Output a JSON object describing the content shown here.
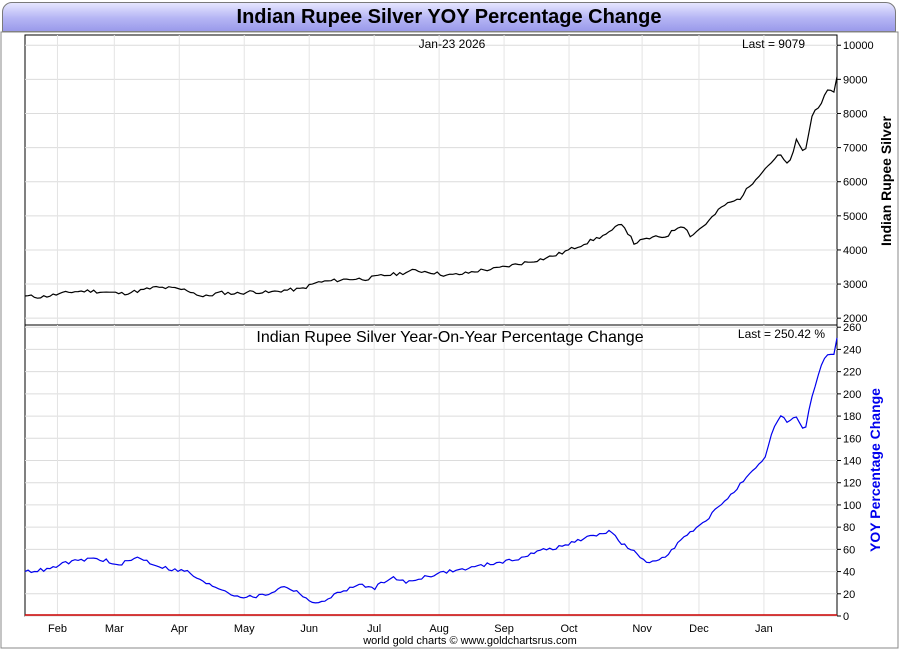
{
  "title": "Indian Rupee Silver YOY Percentage Change",
  "footer": "world gold charts © www.goldchartsrus.com",
  "chart_data": [
    {
      "type": "line",
      "name": "price",
      "header_date": "Jan-23  2026",
      "last_label": "Last = 9079",
      "ylabel": "Indian Rupee Silver",
      "ylim": [
        1800,
        10300
      ],
      "yticks": [
        2000,
        3000,
        4000,
        5000,
        6000,
        7000,
        8000,
        9000,
        10000
      ],
      "line_color": "#000000",
      "anchors": [
        [
          0,
          2650
        ],
        [
          0.02,
          2620
        ],
        [
          0.04,
          2700
        ],
        [
          0.06,
          2780
        ],
        [
          0.08,
          2800
        ],
        [
          0.1,
          2760
        ],
        [
          0.12,
          2720
        ],
        [
          0.14,
          2800
        ],
        [
          0.16,
          2900
        ],
        [
          0.18,
          2880
        ],
        [
          0.2,
          2820
        ],
        [
          0.22,
          2620
        ],
        [
          0.24,
          2750
        ],
        [
          0.26,
          2720
        ],
        [
          0.28,
          2780
        ],
        [
          0.3,
          2750
        ],
        [
          0.32,
          2820
        ],
        [
          0.34,
          2850
        ],
        [
          0.36,
          3050
        ],
        [
          0.38,
          3100
        ],
        [
          0.4,
          3150
        ],
        [
          0.42,
          3150
        ],
        [
          0.44,
          3250
        ],
        [
          0.46,
          3300
        ],
        [
          0.48,
          3400
        ],
        [
          0.5,
          3350
        ],
        [
          0.52,
          3250
        ],
        [
          0.54,
          3300
        ],
        [
          0.56,
          3400
        ],
        [
          0.58,
          3450
        ],
        [
          0.6,
          3550
        ],
        [
          0.62,
          3650
        ],
        [
          0.64,
          3750
        ],
        [
          0.66,
          3900
        ],
        [
          0.68,
          4100
        ],
        [
          0.7,
          4300
        ],
        [
          0.72,
          4500
        ],
        [
          0.735,
          4800
        ],
        [
          0.75,
          4200
        ],
        [
          0.77,
          4350
        ],
        [
          0.79,
          4400
        ],
        [
          0.8,
          4600
        ],
        [
          0.81,
          4750
        ],
        [
          0.82,
          4400
        ],
        [
          0.84,
          4800
        ],
        [
          0.86,
          5300
        ],
        [
          0.88,
          5500
        ],
        [
          0.9,
          6100
        ],
        [
          0.92,
          6600
        ],
        [
          0.93,
          6800
        ],
        [
          0.94,
          6450
        ],
        [
          0.95,
          7200
        ],
        [
          0.96,
          6800
        ],
        [
          0.97,
          8000
        ],
        [
          0.98,
          8300
        ],
        [
          0.99,
          8700
        ],
        [
          0.995,
          8550
        ],
        [
          1.0,
          9079
        ]
      ],
      "last_value": 9079
    },
    {
      "type": "line",
      "name": "yoy",
      "title": "Indian Rupee Silver Year-On-Year Percentage Change",
      "last_label": "Last = 250.42 %",
      "ylabel": "YOY Percentage Change",
      "ylim": [
        0,
        262
      ],
      "yticks": [
        0,
        20,
        40,
        60,
        80,
        100,
        120,
        140,
        160,
        180,
        200,
        220,
        240,
        260
      ],
      "line_color": "#0000ee",
      "baseline_color": "#cc0000",
      "anchors": [
        [
          0,
          40
        ],
        [
          0.03,
          42
        ],
        [
          0.05,
          48
        ],
        [
          0.07,
          50
        ],
        [
          0.08,
          52
        ],
        [
          0.1,
          50
        ],
        [
          0.11,
          45
        ],
        [
          0.13,
          50
        ],
        [
          0.14,
          53
        ],
        [
          0.16,
          46
        ],
        [
          0.18,
          42
        ],
        [
          0.2,
          40
        ],
        [
          0.22,
          30
        ],
        [
          0.24,
          25
        ],
        [
          0.26,
          18
        ],
        [
          0.28,
          17
        ],
        [
          0.3,
          20
        ],
        [
          0.32,
          27
        ],
        [
          0.34,
          20
        ],
        [
          0.35,
          14
        ],
        [
          0.36,
          10
        ],
        [
          0.37,
          15
        ],
        [
          0.39,
          22
        ],
        [
          0.41,
          28
        ],
        [
          0.43,
          25
        ],
        [
          0.45,
          35
        ],
        [
          0.47,
          30
        ],
        [
          0.49,
          35
        ],
        [
          0.52,
          40
        ],
        [
          0.54,
          42
        ],
        [
          0.56,
          45
        ],
        [
          0.58,
          48
        ],
        [
          0.6,
          50
        ],
        [
          0.62,
          55
        ],
        [
          0.64,
          60
        ],
        [
          0.66,
          62
        ],
        [
          0.68,
          68
        ],
        [
          0.7,
          72
        ],
        [
          0.72,
          77
        ],
        [
          0.735,
          65
        ],
        [
          0.75,
          58
        ],
        [
          0.76,
          50
        ],
        [
          0.77,
          48
        ],
        [
          0.79,
          55
        ],
        [
          0.81,
          70
        ],
        [
          0.83,
          80
        ],
        [
          0.85,
          95
        ],
        [
          0.87,
          110
        ],
        [
          0.89,
          125
        ],
        [
          0.91,
          140
        ],
        [
          0.92,
          165
        ],
        [
          0.93,
          180
        ],
        [
          0.94,
          175
        ],
        [
          0.95,
          180
        ],
        [
          0.96,
          165
        ],
        [
          0.97,
          200
        ],
        [
          0.98,
          225
        ],
        [
          0.99,
          238
        ],
        [
          0.995,
          230
        ],
        [
          1.0,
          250.42
        ]
      ],
      "last_value": 250.42
    }
  ],
  "x_axis": {
    "months": [
      "Feb",
      "Mar",
      "Apr",
      "May",
      "Jun",
      "Jul",
      "Aug",
      "Sep",
      "Oct",
      "Nov",
      "Dec",
      "Jan"
    ],
    "month_positions": [
      0.04,
      0.11,
      0.19,
      0.27,
      0.35,
      0.43,
      0.51,
      0.59,
      0.67,
      0.76,
      0.83,
      0.91
    ]
  }
}
